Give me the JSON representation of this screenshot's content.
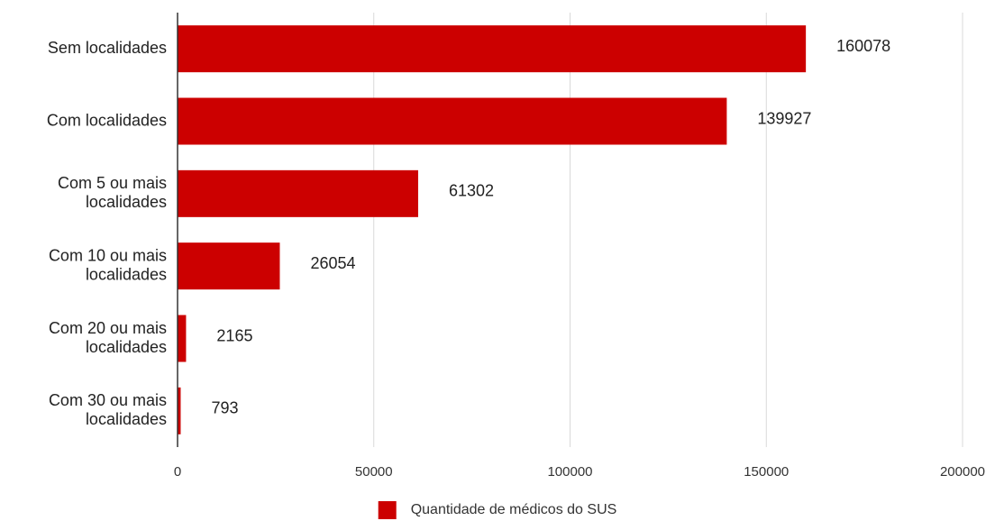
{
  "chart_data": {
    "type": "bar",
    "orientation": "horizontal",
    "categories": [
      "Sem localidades",
      "Com localidades",
      "Com 5 ou mais localidades",
      "Com 10 ou mais localidades",
      "Com 20 ou mais localidades",
      "Com 30 ou mais localidades"
    ],
    "category_lines": [
      [
        "Sem localidades"
      ],
      [
        "Com localidades"
      ],
      [
        "Com 5 ou mais",
        "localidades"
      ],
      [
        "Com 10 ou mais",
        "localidades"
      ],
      [
        "Com 20 ou mais",
        "localidades"
      ],
      [
        "Com 30 ou mais",
        "localidades"
      ]
    ],
    "series": [
      {
        "name": "Quantidade de médicos do SUS",
        "values": [
          160078,
          139927,
          61302,
          26054,
          2165,
          793
        ],
        "color": "#cc0000"
      }
    ],
    "data_labels": [
      "160078",
      "139927",
      "61302",
      "26054",
      "2165",
      "793"
    ],
    "xlim": [
      0,
      200000
    ],
    "xticks": [
      0,
      50000,
      100000,
      150000,
      200000
    ],
    "xtick_labels": [
      "0",
      "50000",
      "100000",
      "150000",
      "200000"
    ],
    "title": "",
    "xlabel": "",
    "ylabel": "",
    "grid": "vertical",
    "legend_position": "bottom-center",
    "colors": {
      "bar": "#cc0000",
      "grid": "#d9d9d9",
      "axis": "#333333",
      "text": "#222222"
    }
  }
}
